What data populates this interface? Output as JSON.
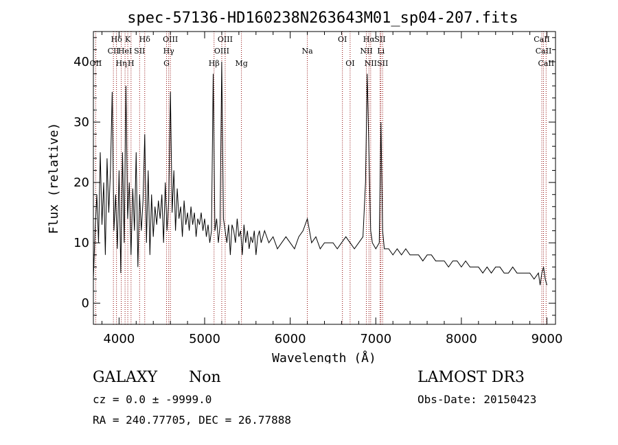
{
  "chart_data": {
    "type": "line",
    "title": "spec-57136-HD160238N263643M01_sp04-207.fits",
    "xlabel": "Wavelength (Å)",
    "ylabel": "Flux (relative)",
    "xlim": [
      3700,
      9100
    ],
    "ylim": [
      -3.5,
      45
    ],
    "xticks": [
      4000,
      5000,
      6000,
      7000,
      8000,
      9000
    ],
    "yticks": [
      0,
      10,
      20,
      30,
      40
    ],
    "grid": false,
    "legend": "none",
    "line_color": "#8b0000",
    "spectrum_color": "#000000",
    "spectral_lines": [
      {
        "label": "OII",
        "wavelength": 3727,
        "row": 3
      },
      {
        "label": "CII",
        "wavelength": 3934,
        "row": 2
      },
      {
        "label": "Hδ",
        "wavelength": 3970,
        "row": 1
      },
      {
        "label": "Hη",
        "wavelength": 4026,
        "row": 3
      },
      {
        "label": "HeI",
        "wavelength": 4070,
        "row": 2
      },
      {
        "label": "K",
        "wavelength": 4102,
        "row": 1
      },
      {
        "label": "H",
        "wavelength": 4140,
        "row": 3
      },
      {
        "label": "SII",
        "wavelength": 4240,
        "row": 2
      },
      {
        "label": "Hδ",
        "wavelength": 4300,
        "row": 1
      },
      {
        "label": "G",
        "wavelength": 4555,
        "row": 3
      },
      {
        "label": "Hγ",
        "wavelength": 4580,
        "row": 2
      },
      {
        "label": "OIII",
        "wavelength": 4600,
        "row": 1
      },
      {
        "label": "Hβ",
        "wavelength": 5110,
        "row": 3
      },
      {
        "label": "OIII",
        "wavelength": 5200,
        "row": 2
      },
      {
        "label": "OIII",
        "wavelength": 5240,
        "row": 1
      },
      {
        "label": "Mg",
        "wavelength": 5430,
        "row": 3
      },
      {
        "label": "Na",
        "wavelength": 6200,
        "row": 2
      },
      {
        "label": "OI",
        "wavelength": 6610,
        "row": 1
      },
      {
        "label": "OI",
        "wavelength": 6700,
        "row": 3
      },
      {
        "label": "NII",
        "wavelength": 6890,
        "row": 2
      },
      {
        "label": "Hα",
        "wavelength": 6920,
        "row": 1
      },
      {
        "label": "NII",
        "wavelength": 6940,
        "row": 3
      },
      {
        "label": "SII",
        "wavelength": 7050,
        "row": 1
      },
      {
        "label": "Li",
        "wavelength": 7060,
        "row": 2
      },
      {
        "label": "SII",
        "wavelength": 7080,
        "row": 3
      },
      {
        "label": "CaII",
        "wavelength": 8940,
        "row": 1
      },
      {
        "label": "CaII",
        "wavelength": 8960,
        "row": 2
      },
      {
        "label": "CaII",
        "wavelength": 8990,
        "row": 3
      }
    ],
    "series": [
      {
        "name": "spectrum",
        "x": [
          3700,
          3720,
          3740,
          3760,
          3780,
          3800,
          3820,
          3840,
          3860,
          3880,
          3900,
          3920,
          3940,
          3960,
          3980,
          4000,
          4020,
          4040,
          4060,
          4080,
          4100,
          4120,
          4140,
          4160,
          4180,
          4200,
          4220,
          4240,
          4260,
          4280,
          4300,
          4320,
          4340,
          4360,
          4380,
          4400,
          4420,
          4440,
          4460,
          4480,
          4500,
          4520,
          4540,
          4560,
          4580,
          4600,
          4620,
          4640,
          4660,
          4680,
          4700,
          4720,
          4740,
          4760,
          4780,
          4800,
          4820,
          4840,
          4860,
          4880,
          4900,
          4920,
          4940,
          4960,
          4980,
          5000,
          5020,
          5040,
          5060,
          5080,
          5100,
          5120,
          5140,
          5160,
          5180,
          5200,
          5220,
          5240,
          5260,
          5280,
          5300,
          5320,
          5340,
          5360,
          5380,
          5400,
          5420,
          5440,
          5460,
          5480,
          5500,
          5520,
          5540,
          5560,
          5580,
          5600,
          5620,
          5640,
          5660,
          5680,
          5700,
          5750,
          5800,
          5850,
          5900,
          5950,
          6000,
          6050,
          6100,
          6150,
          6200,
          6250,
          6300,
          6350,
          6400,
          6450,
          6500,
          6550,
          6600,
          6650,
          6700,
          6750,
          6800,
          6850,
          6880,
          6900,
          6920,
          6940,
          6960,
          7000,
          7040,
          7060,
          7080,
          7100,
          7150,
          7200,
          7250,
          7300,
          7350,
          7400,
          7450,
          7500,
          7550,
          7600,
          7650,
          7700,
          7750,
          7800,
          7850,
          7900,
          7950,
          8000,
          8050,
          8100,
          8150,
          8200,
          8250,
          8300,
          8350,
          8400,
          8450,
          8500,
          8550,
          8600,
          8650,
          8700,
          8750,
          8800,
          8850,
          8900,
          8920,
          8940,
          8960,
          8980,
          9000
        ],
        "values": [
          4,
          12,
          18,
          10,
          25,
          13,
          20,
          8,
          24,
          15,
          22,
          35,
          12,
          18,
          9,
          22,
          5,
          25,
          10,
          36,
          14,
          20,
          8,
          19,
          12,
          25,
          6,
          18,
          12,
          17,
          28,
          10,
          22,
          8,
          18,
          11,
          16,
          13,
          17,
          14,
          18,
          10,
          20,
          12,
          17,
          35,
          15,
          22,
          12,
          19,
          14,
          16,
          11,
          17,
          13,
          15,
          12,
          16,
          13,
          15,
          11,
          14,
          13,
          15,
          12,
          14,
          11,
          13,
          10,
          12,
          38,
          12,
          14,
          10,
          13,
          40,
          14,
          12,
          10,
          13,
          8,
          13,
          12,
          10,
          14,
          11,
          12,
          8,
          13,
          10,
          12,
          9,
          11,
          10,
          12,
          8,
          11,
          12,
          10,
          11,
          12,
          10,
          11,
          9,
          10,
          11,
          10,
          9,
          11,
          12,
          14,
          10,
          11,
          9,
          10,
          10,
          10,
          9,
          10,
          11,
          10,
          9,
          10,
          11,
          20,
          38,
          25,
          12,
          10,
          9,
          10,
          30,
          12,
          9,
          9,
          8,
          9,
          8,
          9,
          8,
          8,
          8,
          7,
          8,
          8,
          7,
          7,
          7,
          6,
          7,
          7,
          6,
          7,
          6,
          6,
          6,
          5,
          6,
          5,
          6,
          6,
          5,
          5,
          6,
          5,
          5,
          5,
          5,
          4,
          5,
          3,
          5,
          6,
          4,
          3
        ]
      }
    ]
  },
  "info": {
    "object_class": "GALAXY",
    "subclass": "Non",
    "survey": "LAMOST DR3",
    "redshift_line": "cz = 0.0 ± -9999.0",
    "obs_date": "Obs-Date: 20150423",
    "coords": "RA = 240.77705, DEC =  26.77888"
  }
}
